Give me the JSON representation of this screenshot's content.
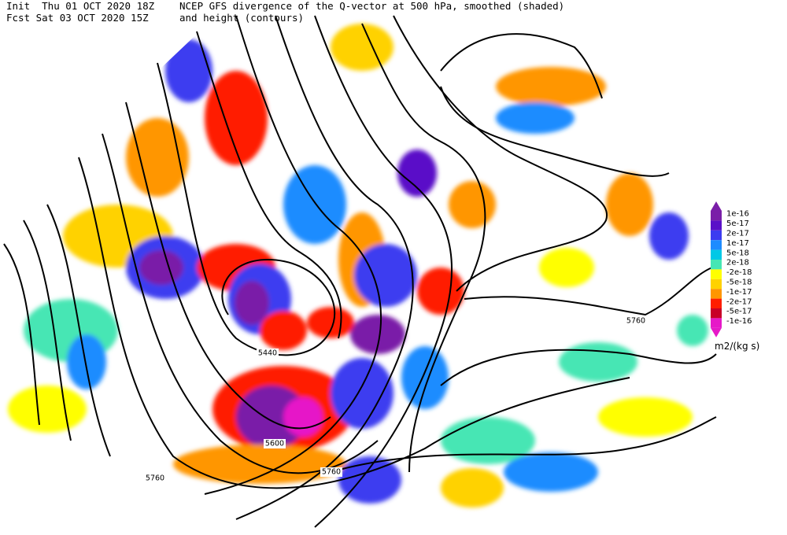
{
  "header": {
    "init": "Init  Thu 01 OCT 2020 18Z",
    "fcst": "Fcst Sat 03 OCT 2020 15Z",
    "title_line1": "NCEP GFS divergence of the Q-vector at 500 hPa, smoothed (shaded)",
    "title_line2": "and height (contours)"
  },
  "legend": {
    "labels": [
      "1e-16",
      "5e-17",
      "2e-17",
      "1e-17",
      "5e-18",
      "2e-18",
      "-2e-18",
      "-5e-18",
      "-1e-17",
      "-2e-17",
      "-5e-17",
      "-1e-16"
    ],
    "colors": [
      "#7a1fa8",
      "#5a10c8",
      "#3c3cf0",
      "#1e8cff",
      "#00c8e6",
      "#46e6b4",
      "#ffff00",
      "#ffd200",
      "#ff9600",
      "#ff1e00",
      "#c80028",
      "#e619c8"
    ],
    "unit": "m2/(kg s)"
  },
  "contour_labels": [
    "5440",
    "5600",
    "5760",
    "5760",
    "5760"
  ]
}
